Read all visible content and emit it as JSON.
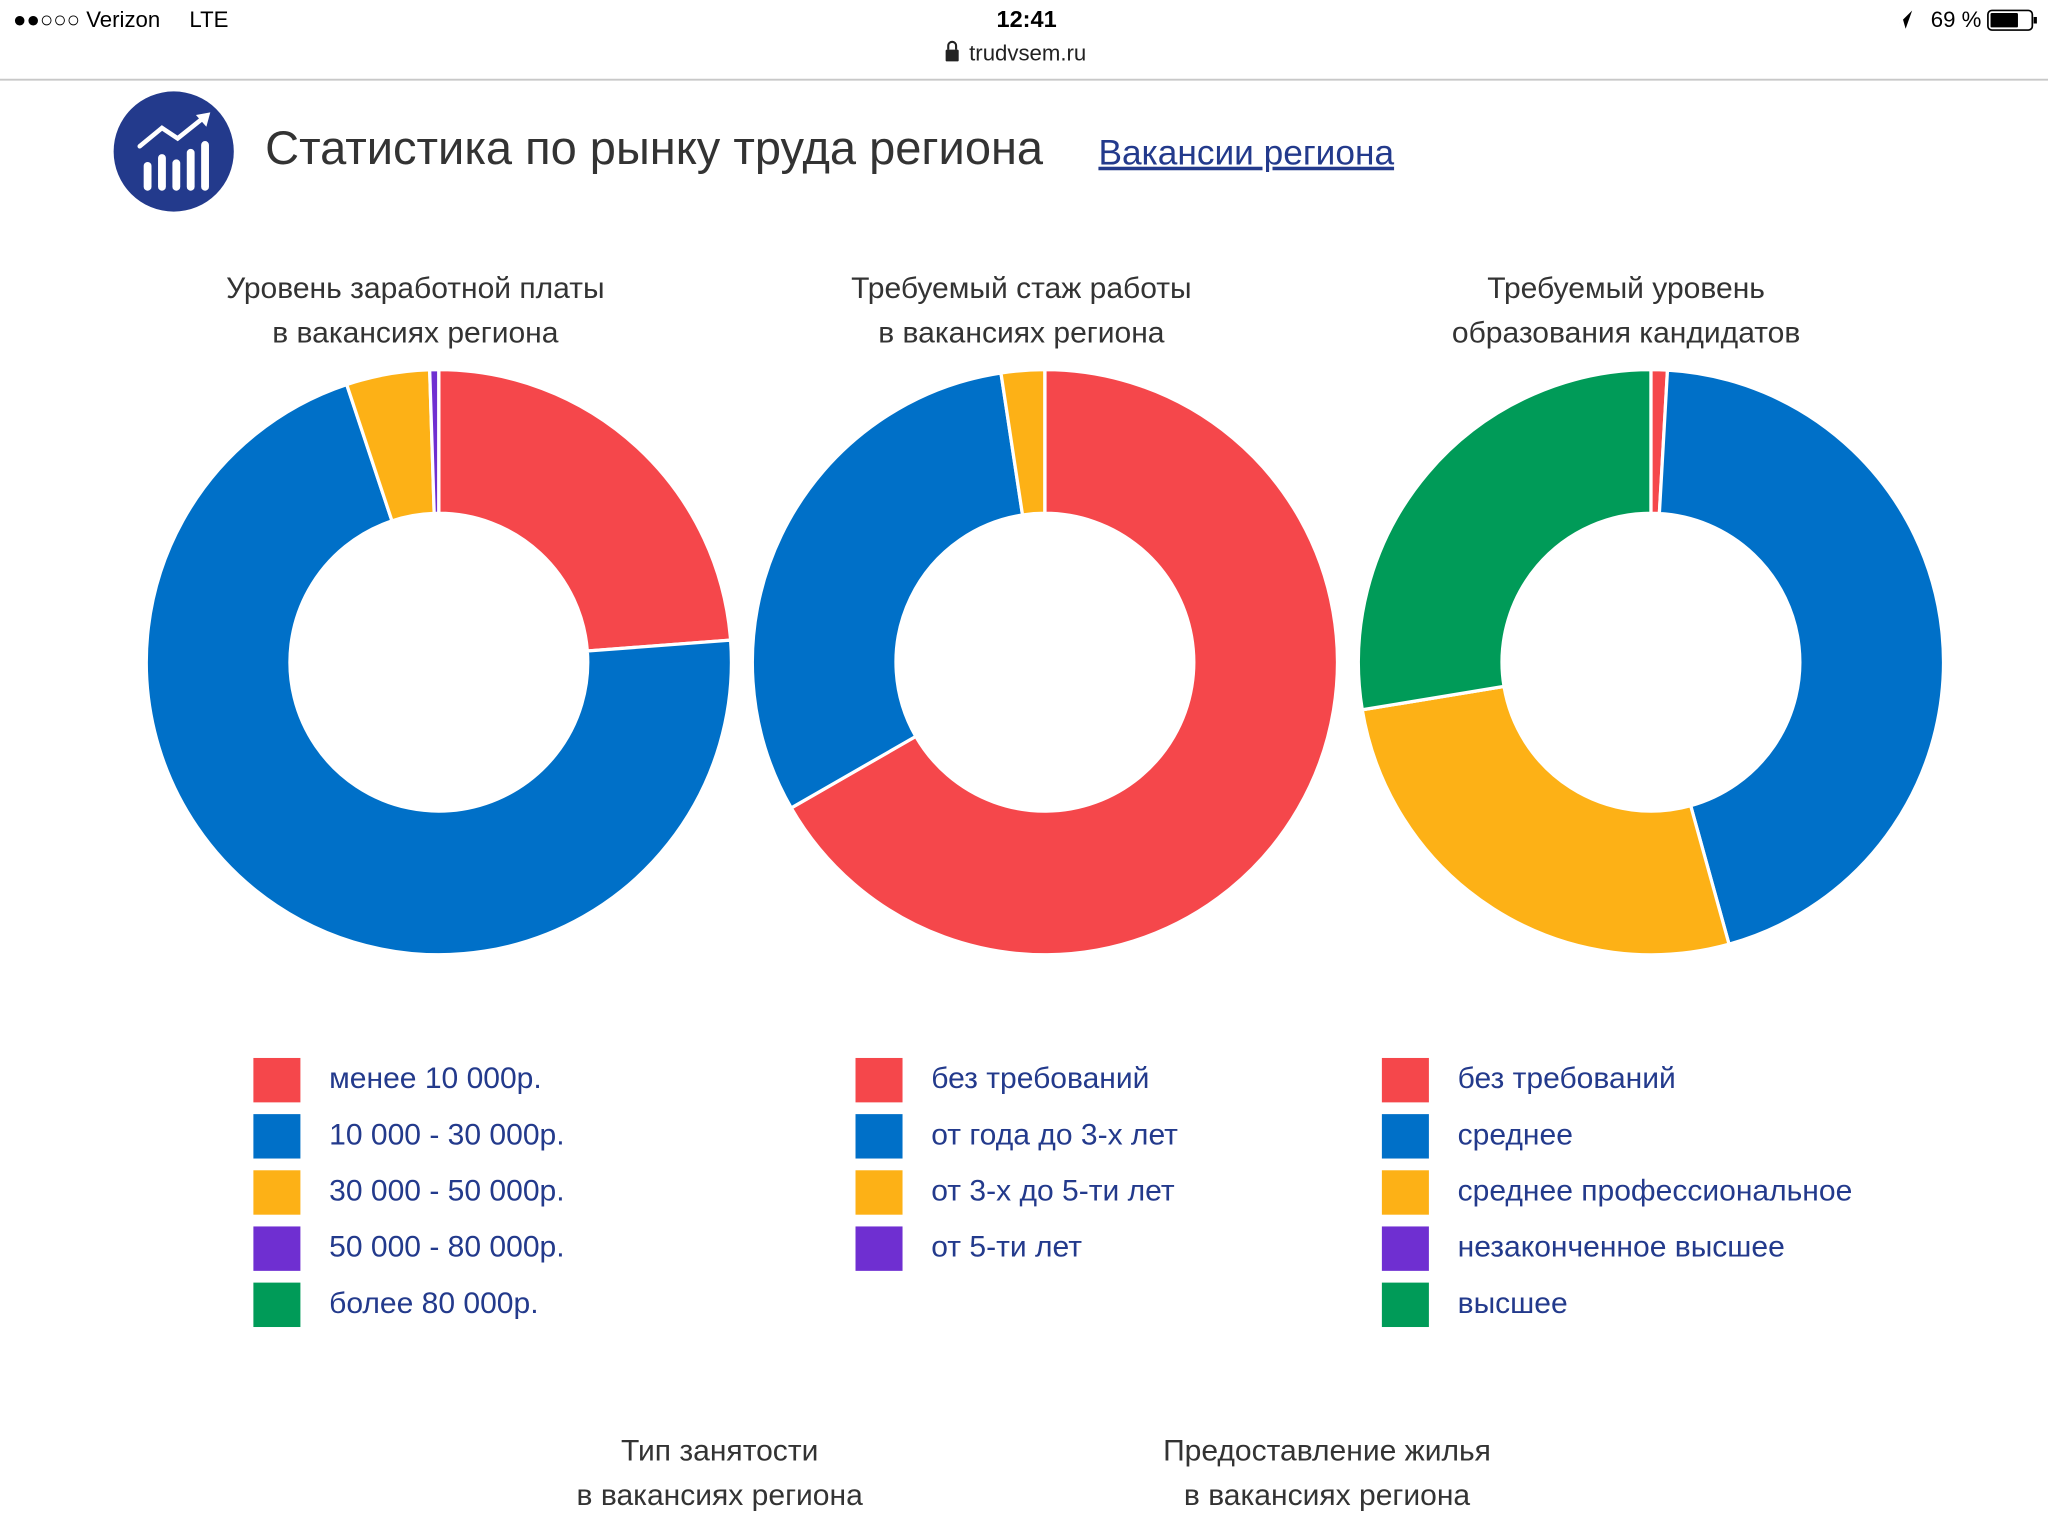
{
  "status_bar": {
    "carrier": "●●○○○ Verizon",
    "network": "LTE",
    "time": "12:41",
    "url": "trudvsem.ru",
    "battery": "69 %"
  },
  "header": {
    "title": "Статистика по рынку труда региона",
    "link": "Вакансии региона"
  },
  "chart_data": [
    {
      "type": "donut",
      "title": [
        "Уровень заработной платы",
        "в вакансиях региона"
      ],
      "categories": [
        "менее 10 000р.",
        "10 000 - 30 000р.",
        "30 000 - 50 000р.",
        "50 000 - 80 000р.",
        "более 80 000р."
      ],
      "values": [
        23.8,
        71.1,
        4.6,
        0.5,
        0
      ],
      "colors": [
        "#f5474b",
        "#0070c8",
        "#fdb116",
        "#6f2fd1",
        "#009b58"
      ]
    },
    {
      "type": "donut",
      "title": [
        "Требуемый стаж работы",
        "в вакансиях региона"
      ],
      "categories": [
        "без требований",
        "от года до 3-х лет",
        "от 3-х до 5-ти лет",
        "от 5-ти лет"
      ],
      "values": [
        66.7,
        30.9,
        2.4,
        0
      ],
      "colors": [
        "#f5474b",
        "#0070c8",
        "#fdb116",
        "#6f2fd1"
      ]
    },
    {
      "type": "donut",
      "title": [
        "Требуемый уровень",
        "образования кандидатов"
      ],
      "categories": [
        "без требований",
        "среднее",
        "среднее профессиональное",
        "незаконченное высшее",
        "высшее"
      ],
      "values": [
        0.9,
        44.8,
        26.7,
        0,
        27.6
      ],
      "colors": [
        "#f5474b",
        "#0070c8",
        "#fdb116",
        "#6f2fd1",
        "#009b58"
      ]
    }
  ],
  "more_sections": [
    {
      "title": [
        "Тип занятости",
        "в вакансиях региона"
      ]
    },
    {
      "title": [
        "Предоставление жилья",
        "в вакансиях региона"
      ]
    }
  ]
}
